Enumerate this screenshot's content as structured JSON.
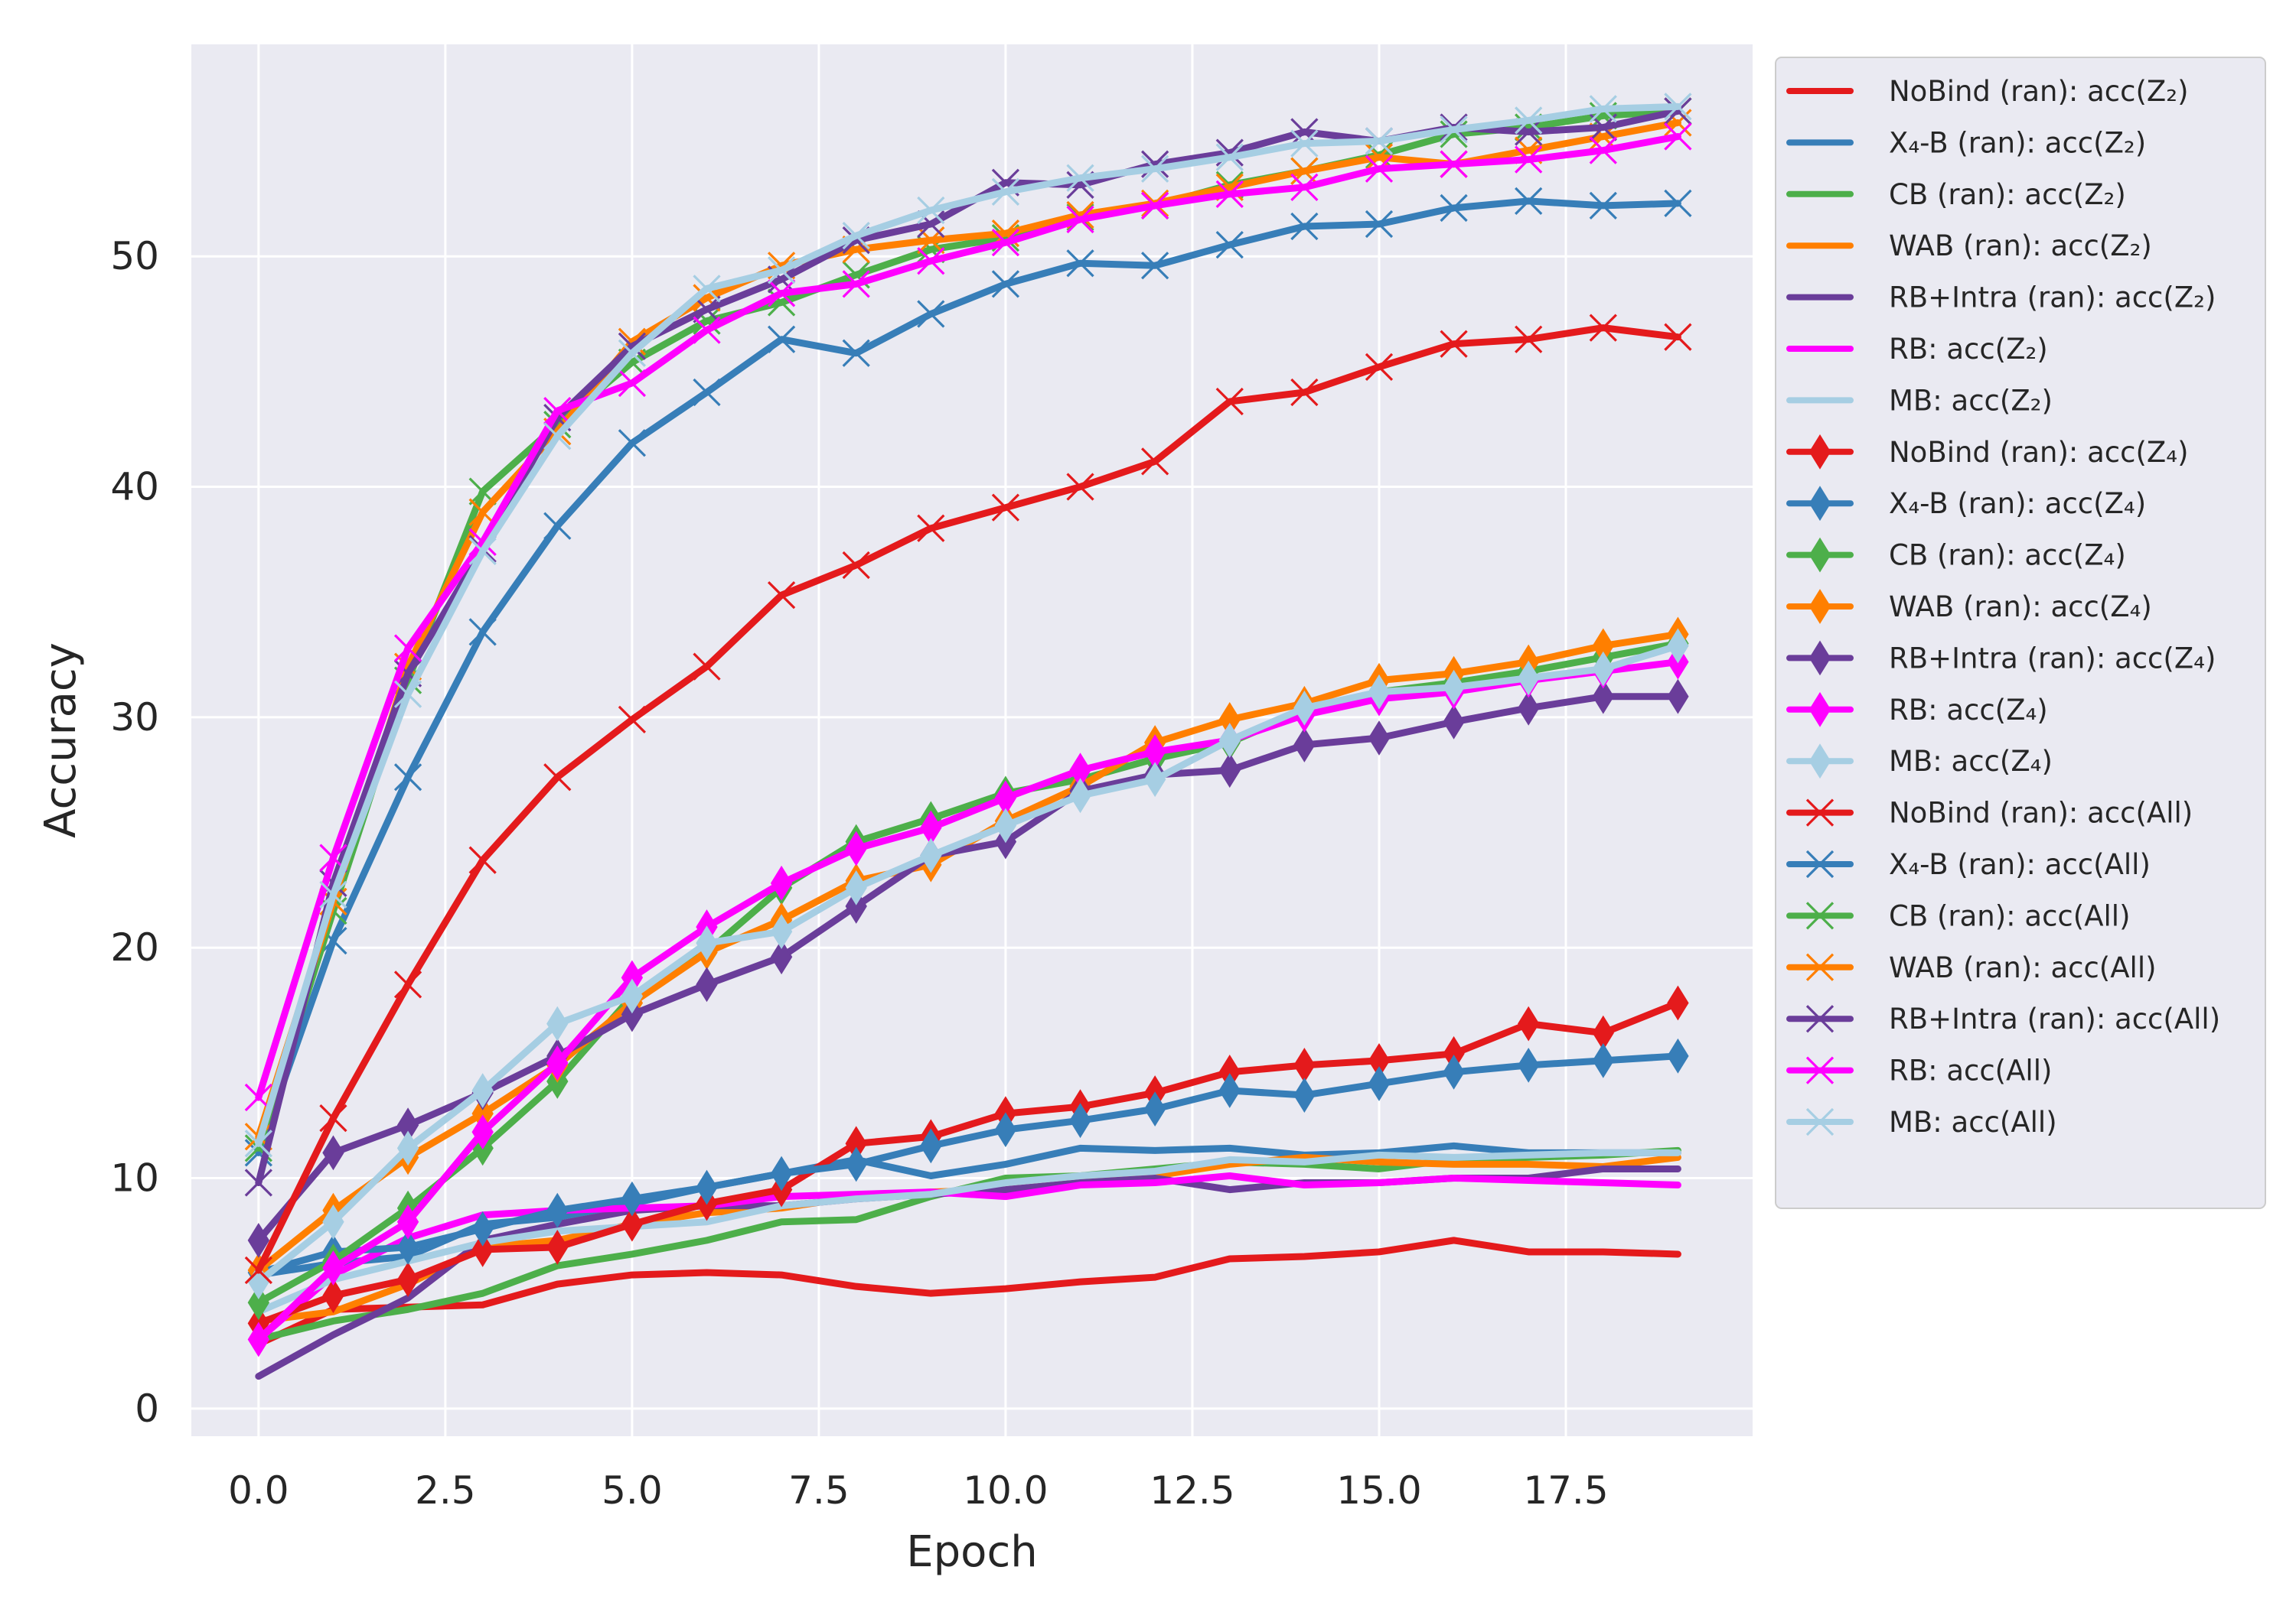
{
  "chart_data": {
    "type": "line",
    "title": "",
    "xlabel": "Epoch",
    "ylabel": "Accuracy",
    "xlim": [
      -0.9,
      20.0
    ],
    "ylim": [
      -1.2,
      59.2
    ],
    "grid": true,
    "legend_position": "outside-right",
    "xticks": [
      0.0,
      2.5,
      5.0,
      7.5,
      10.0,
      12.5,
      15.0,
      17.5
    ],
    "xtick_labels": [
      "0.0",
      "2.5",
      "5.0",
      "7.5",
      "10.0",
      "12.5",
      "15.0",
      "17.5"
    ],
    "yticks": [
      0,
      10,
      20,
      30,
      40,
      50
    ],
    "ytick_labels": [
      "0",
      "10",
      "20",
      "30",
      "40",
      "50"
    ],
    "x": [
      0,
      1,
      2,
      3,
      4,
      5,
      6,
      7,
      8,
      9,
      10,
      11,
      12,
      13,
      14,
      15,
      16,
      17,
      18,
      19
    ],
    "series": [
      {
        "name": "NoBind (ran): acc(Z₂)",
        "color": "#e41a1c",
        "marker": "none",
        "values": [
          2.8,
          4.3,
          4.4,
          4.5,
          5.4,
          5.8,
          5.9,
          5.8,
          5.3,
          5.0,
          5.2,
          5.5,
          5.7,
          6.5,
          6.6,
          6.8,
          7.3,
          6.8,
          6.8,
          6.7
        ]
      },
      {
        "name": "X₄-B (ran): acc(Z₂)",
        "color": "#377eb8",
        "marker": "none",
        "values": [
          5.8,
          6.3,
          6.6,
          8.0,
          8.3,
          8.9,
          9.6,
          10.2,
          10.8,
          10.1,
          10.6,
          11.3,
          11.2,
          11.3,
          11.0,
          11.1,
          11.4,
          11.1,
          11.1,
          11.1
        ]
      },
      {
        "name": "CB (ran): acc(Z₂)",
        "color": "#4daf4a",
        "marker": "none",
        "values": [
          3.0,
          3.8,
          4.3,
          5.0,
          6.2,
          6.7,
          7.3,
          8.1,
          8.2,
          9.2,
          10.0,
          10.1,
          10.4,
          10.7,
          10.6,
          10.4,
          10.8,
          10.9,
          11.0,
          11.2
        ]
      },
      {
        "name": "WAB (ran): acc(Z₂)",
        "color": "#ff7f00",
        "marker": "none",
        "values": [
          3.8,
          4.2,
          5.4,
          7.0,
          7.3,
          8.0,
          8.5,
          8.7,
          9.2,
          9.4,
          9.5,
          9.8,
          10.1,
          10.6,
          10.9,
          10.7,
          10.6,
          10.6,
          10.5,
          10.9
        ]
      },
      {
        "name": "RB+Intra (ran): acc(Z₂)",
        "color": "#6a3d9a",
        "marker": "none",
        "values": [
          1.4,
          3.2,
          4.8,
          7.3,
          8.0,
          8.6,
          8.8,
          8.8,
          9.1,
          9.3,
          9.5,
          9.8,
          10.0,
          9.5,
          9.8,
          9.8,
          10.0,
          10.0,
          10.4,
          10.4
        ]
      },
      {
        "name": "RB: acc(Z₂)",
        "color": "#ff00ff",
        "marker": "none",
        "values": [
          3.0,
          5.8,
          7.4,
          8.4,
          8.6,
          8.7,
          8.8,
          9.2,
          9.3,
          9.4,
          9.2,
          9.7,
          9.8,
          10.1,
          9.7,
          9.8,
          10.0,
          9.9,
          9.8,
          9.7
        ]
      },
      {
        "name": "MB: acc(Z₂)",
        "color": "#a6cee3",
        "marker": "none",
        "values": [
          4.2,
          5.6,
          6.4,
          7.2,
          7.7,
          7.9,
          8.1,
          8.8,
          9.1,
          9.3,
          9.8,
          10.1,
          10.3,
          10.8,
          10.7,
          11.0,
          10.9,
          11.0,
          11.1,
          11.1
        ]
      },
      {
        "name": "NoBind (ran): acc(Z₄)",
        "color": "#e41a1c",
        "marker": "diamond",
        "values": [
          3.7,
          4.9,
          5.6,
          6.9,
          7.0,
          8.0,
          8.9,
          9.5,
          11.5,
          11.8,
          12.8,
          13.1,
          13.7,
          14.6,
          14.9,
          15.1,
          15.4,
          16.7,
          16.3,
          17.6
        ]
      },
      {
        "name": "X₄-B (ran): acc(Z₄)",
        "color": "#377eb8",
        "marker": "diamond",
        "values": [
          5.9,
          6.8,
          7.0,
          7.8,
          8.6,
          9.1,
          9.6,
          10.2,
          10.6,
          11.4,
          12.1,
          12.5,
          13.0,
          13.8,
          13.6,
          14.1,
          14.6,
          14.9,
          15.1,
          15.3
        ]
      },
      {
        "name": "CB (ran): acc(Z₄)",
        "color": "#4daf4a",
        "marker": "diamond",
        "values": [
          4.6,
          6.4,
          8.7,
          11.3,
          14.2,
          17.9,
          19.8,
          22.6,
          24.6,
          25.6,
          26.7,
          27.3,
          28.2,
          28.9,
          30.3,
          31.1,
          31.5,
          32.0,
          32.6,
          33.2
        ]
      },
      {
        "name": "WAB (ran): acc(Z₄)",
        "color": "#ff7f00",
        "marker": "diamond",
        "values": [
          6.0,
          8.6,
          10.9,
          12.8,
          14.9,
          17.6,
          19.8,
          21.2,
          22.9,
          23.6,
          25.5,
          27.0,
          28.9,
          29.9,
          30.6,
          31.6,
          31.9,
          32.4,
          33.1,
          33.6
        ]
      },
      {
        "name": "RB+Intra (ran): acc(Z₄)",
        "color": "#6a3d9a",
        "marker": "diamond",
        "values": [
          7.3,
          11.1,
          12.3,
          13.7,
          15.3,
          17.1,
          18.4,
          19.6,
          21.8,
          24.0,
          24.6,
          26.8,
          27.5,
          27.7,
          28.8,
          29.1,
          29.8,
          30.4,
          30.9,
          30.9
        ]
      },
      {
        "name": "RB: acc(Z₄)",
        "color": "#ff00ff",
        "marker": "diamond",
        "values": [
          3.0,
          6.1,
          8.1,
          12.0,
          15.0,
          18.7,
          20.9,
          22.8,
          24.3,
          25.2,
          26.5,
          27.7,
          28.5,
          29.0,
          30.1,
          30.8,
          31.1,
          31.6,
          32.0,
          32.4
        ]
      },
      {
        "name": "MB: acc(Z₄)",
        "color": "#a6cee3",
        "marker": "diamond",
        "values": [
          5.5,
          8.1,
          11.3,
          13.8,
          16.7,
          17.9,
          20.2,
          20.7,
          22.6,
          24.0,
          25.3,
          26.6,
          27.3,
          29.0,
          30.4,
          31.1,
          31.3,
          31.7,
          32.1,
          33.1
        ]
      },
      {
        "name": "NoBind (ran): acc(All)",
        "color": "#e41a1c",
        "marker": "x",
        "values": [
          6.0,
          12.6,
          18.4,
          23.8,
          27.4,
          29.9,
          32.2,
          35.3,
          36.6,
          38.2,
          39.1,
          40.0,
          41.1,
          43.7,
          44.1,
          45.2,
          46.2,
          46.4,
          46.9,
          46.5
        ]
      },
      {
        "name": "X₄-B (ran): acc(All)",
        "color": "#377eb8",
        "marker": "x",
        "values": [
          11.1,
          20.3,
          27.4,
          33.7,
          38.3,
          41.9,
          44.1,
          46.4,
          45.8,
          47.5,
          48.8,
          49.7,
          49.6,
          50.5,
          51.3,
          51.4,
          52.1,
          52.4,
          52.2,
          52.3
        ]
      },
      {
        "name": "CB (ran): acc(All)",
        "color": "#4daf4a",
        "marker": "x",
        "values": [
          11.3,
          21.6,
          31.6,
          39.8,
          42.7,
          45.4,
          47.2,
          48.0,
          49.2,
          50.3,
          50.8,
          51.7,
          52.2,
          53.1,
          53.7,
          54.4,
          55.3,
          55.6,
          56.1,
          56.3
        ]
      },
      {
        "name": "WAB (ran): acc(All)",
        "color": "#ff7f00",
        "marker": "x",
        "values": [
          11.8,
          22.0,
          32.2,
          38.9,
          42.4,
          46.3,
          48.2,
          49.6,
          50.3,
          50.7,
          51.0,
          51.8,
          52.3,
          53.0,
          53.7,
          54.3,
          54.0,
          54.6,
          55.2,
          55.8
        ]
      },
      {
        "name": "RB+Intra (ran): acc(All)",
        "color": "#6a3d9a",
        "marker": "x",
        "values": [
          9.8,
          22.8,
          31.9,
          37.3,
          43.0,
          46.1,
          47.7,
          49.0,
          50.7,
          51.4,
          53.2,
          53.1,
          54.0,
          54.5,
          55.4,
          55.0,
          55.6,
          55.4,
          55.6,
          56.3
        ]
      },
      {
        "name": "RB: acc(All)",
        "color": "#ff00ff",
        "marker": "x",
        "values": [
          13.5,
          23.9,
          33.0,
          37.6,
          43.3,
          44.5,
          46.8,
          48.4,
          48.8,
          49.8,
          50.6,
          51.6,
          52.2,
          52.7,
          53.0,
          53.8,
          54.0,
          54.2,
          54.6,
          55.2
        ]
      },
      {
        "name": "MB: acc(All)",
        "color": "#a6cee3",
        "marker": "x",
        "values": [
          11.5,
          22.3,
          31.0,
          37.2,
          42.2,
          45.8,
          48.6,
          49.4,
          50.9,
          52.0,
          52.8,
          53.4,
          53.8,
          54.3,
          54.9,
          55.0,
          55.5,
          55.9,
          56.4,
          56.5
        ]
      }
    ]
  }
}
